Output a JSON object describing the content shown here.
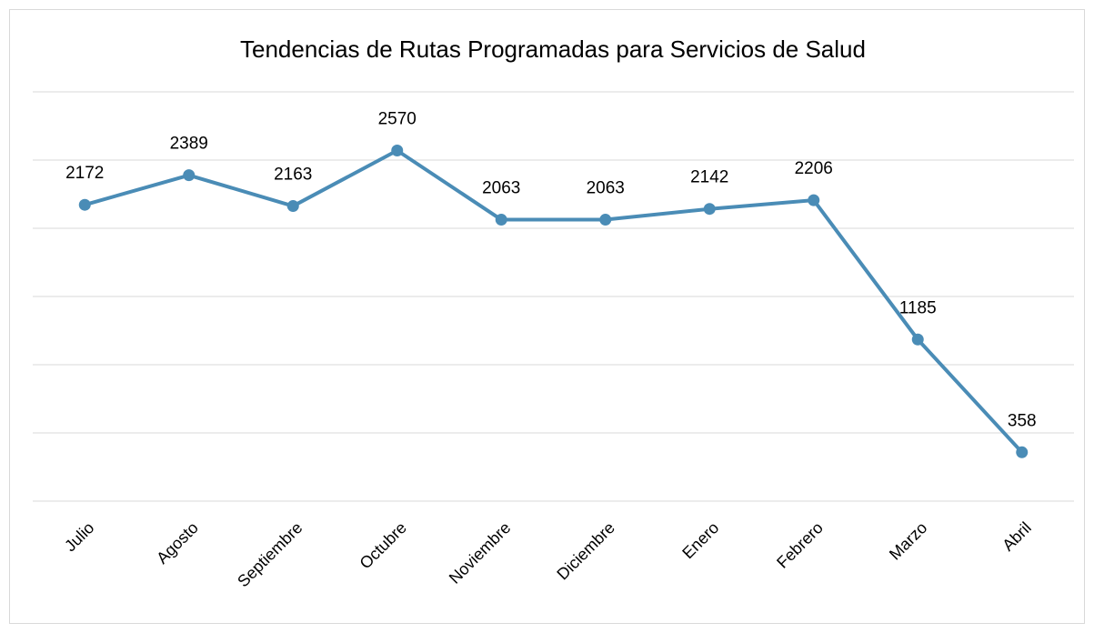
{
  "chart_data": {
    "type": "line",
    "title": "Tendencias de Rutas Programadas para Servicios de Salud",
    "categories": [
      "Julio",
      "Agosto",
      "Septiembre",
      "Octubre",
      "Noviembre",
      "Diciembre",
      "Enero",
      "Febrero",
      "Marzo",
      "Abril"
    ],
    "values": [
      2172,
      2389,
      2163,
      2570,
      2063,
      2063,
      2142,
      2206,
      1185,
      358
    ],
    "color": "#4a8cb6",
    "ylim": [
      0,
      3000
    ],
    "yticks": [
      0,
      500,
      1000,
      1500,
      2000,
      2500,
      3000
    ],
    "grid": true
  }
}
